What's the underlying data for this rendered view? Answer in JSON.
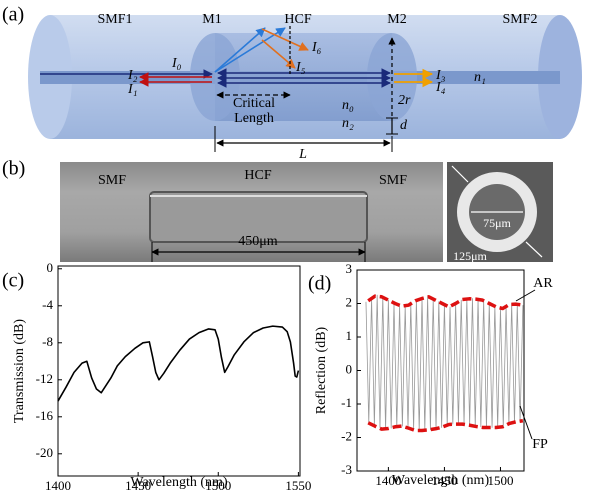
{
  "diagram": {
    "panel_a": {
      "label": "(a)",
      "smf1": "SMF1",
      "m1": "M1",
      "hcf": "HCF",
      "m2": "M2",
      "smf2": "SMF2",
      "i0": "I₀",
      "i1": "I₁",
      "i2": "I₂",
      "i3": "I₃",
      "i4": "I₄",
      "i5": "I₅",
      "i6": "I₆",
      "n1": "n₁",
      "n0": "n₀",
      "n2": "n₂",
      "r": "2r",
      "d": "d",
      "L": "L",
      "critical_1": "Critical",
      "critical_2": "Length"
    },
    "panel_b": {
      "label": "(b)",
      "smf_left": "SMF",
      "hcf": "HCF",
      "smf_right": "SMF",
      "length": "450μm",
      "inner": "75μm",
      "outer": "125μm"
    }
  },
  "chart_data": [
    {
      "type": "line",
      "panel_label": "(c)",
      "xlabel": "Wavelength (nm)",
      "ylabel": "Transmission (dB)",
      "xlim": [
        1400,
        1551
      ],
      "ylim": [
        -22.4,
        0.3
      ],
      "xticks": [
        1400,
        1450,
        1500,
        1550
      ],
      "yticks": [
        0,
        -4,
        -8,
        -12,
        -16,
        -20
      ],
      "series": [
        {
          "color": "#000000",
          "x": [
            1400,
            1405,
            1410,
            1415,
            1418,
            1421,
            1424,
            1427,
            1430,
            1433,
            1437,
            1442,
            1448,
            1453,
            1457,
            1459,
            1461,
            1463,
            1466,
            1470,
            1476,
            1482,
            1488,
            1494,
            1498,
            1500,
            1502,
            1504,
            1506,
            1510,
            1516,
            1522,
            1528,
            1534,
            1540,
            1543,
            1545,
            1547,
            1548,
            1549,
            1550
          ],
          "values": [
            -14.3,
            -12.8,
            -11.2,
            -10.2,
            -10.0,
            -11.8,
            -13.0,
            -13.4,
            -12.6,
            -11.8,
            -10.5,
            -9.5,
            -8.6,
            -8.0,
            -7.9,
            -9.5,
            -11.2,
            -12.0,
            -11.3,
            -10.2,
            -8.8,
            -7.6,
            -6.9,
            -6.5,
            -6.6,
            -7.6,
            -9.6,
            -11.2,
            -10.6,
            -9.3,
            -7.9,
            -6.9,
            -6.4,
            -6.2,
            -6.3,
            -6.8,
            -7.9,
            -10.2,
            -11.6,
            -11.7,
            -11.0
          ]
        }
      ]
    },
    {
      "type": "line",
      "panel_label": "(d)",
      "xlabel": "Wavelength (nm)",
      "ylabel": "Reflection (dB)",
      "xlim": [
        1372,
        1521
      ],
      "ylim": [
        -3,
        3
      ],
      "xticks": [
        1400,
        1450,
        1500
      ],
      "yticks": [
        -3,
        -2,
        -1,
        0,
        1,
        2,
        3
      ],
      "series": [
        {
          "name": "FP",
          "color": "#999999",
          "width": 0.8,
          "x": [
            1380,
            1382.5,
            1385,
            1387.5,
            1390,
            1392.5,
            1395,
            1397.5,
            1400,
            1402.5,
            1405,
            1407.5,
            1410,
            1412.5,
            1415,
            1417.5,
            1420,
            1422.5,
            1425,
            1427.5,
            1430,
            1432.5,
            1435,
            1437.5,
            1440,
            1442.5,
            1445,
            1447.5,
            1450,
            1452.5,
            1455,
            1457.5,
            1460,
            1462.5,
            1465,
            1467.5,
            1470,
            1472.5,
            1475,
            1477.5,
            1480,
            1482.5,
            1485,
            1487.5,
            1490,
            1492.5,
            1495,
            1497.5,
            1500,
            1502.5,
            1505,
            1507.5,
            1510,
            1512.5,
            1515,
            1517.5,
            1520
          ],
          "values": [
            2.05,
            -1.57,
            2.15,
            -1.65,
            2.25,
            -1.7,
            2.2,
            -1.75,
            2.1,
            -1.72,
            2.0,
            -1.68,
            1.92,
            -1.66,
            1.92,
            -1.7,
            2.0,
            -1.76,
            2.1,
            -1.8,
            2.15,
            -1.79,
            2.2,
            -1.77,
            2.12,
            -1.74,
            2.05,
            -1.7,
            1.97,
            -1.64,
            1.9,
            -1.6,
            2.0,
            -1.6,
            2.1,
            -1.6,
            2.13,
            -1.62,
            2.15,
            -1.65,
            2.12,
            -1.68,
            2.1,
            -1.7,
            2.0,
            -1.7,
            1.92,
            -1.7,
            1.85,
            -1.68,
            1.92,
            -1.6,
            2.0,
            -1.55,
            1.98,
            -1.52,
            1.95
          ]
        },
        {
          "name": "AR",
          "color": "#dd1111",
          "width": 3.5,
          "dashed": true,
          "x": [
            1382,
            1388,
            1394,
            1400,
            1406,
            1412,
            1418,
            1424,
            1430,
            1436,
            1442,
            1448,
            1454,
            1460,
            1466,
            1472,
            1478,
            1484,
            1490,
            1496,
            1502,
            1508,
            1514,
            1520,
            null,
            1382,
            1388,
            1394,
            1400,
            1406,
            1412,
            1418,
            1424,
            1430,
            1436,
            1442,
            1448,
            1454,
            1460,
            1466,
            1472,
            1478,
            1484,
            1490,
            1496,
            1502,
            1508,
            1514,
            1520
          ],
          "values": [
            2.08,
            2.22,
            2.2,
            2.1,
            2.0,
            1.92,
            1.95,
            2.08,
            2.15,
            2.2,
            2.1,
            2.0,
            1.9,
            2.0,
            2.12,
            2.14,
            2.13,
            2.1,
            2.0,
            1.9,
            1.85,
            1.97,
            1.98,
            1.95,
            null,
            -1.56,
            -1.66,
            -1.75,
            -1.73,
            -1.68,
            -1.66,
            -1.72,
            -1.79,
            -1.79,
            -1.77,
            -1.74,
            -1.69,
            -1.61,
            -1.6,
            -1.6,
            -1.63,
            -1.67,
            -1.7,
            -1.7,
            -1.7,
            -1.68,
            -1.58,
            -1.53,
            -1.5
          ]
        }
      ]
    }
  ]
}
